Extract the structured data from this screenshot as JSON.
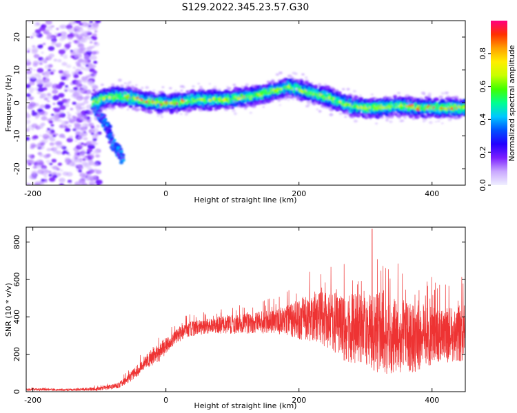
{
  "title": "S129.2022.345.23.57.G30",
  "chart_data": [
    {
      "type": "heatmap",
      "xlabel": "Height of straight line (km)",
      "ylabel": "Frequency (Hz)",
      "xlim": [
        -210,
        450
      ],
      "ylim": [
        -25,
        25
      ],
      "xticks": [
        -200,
        0,
        200,
        400
      ],
      "yticks": [
        -20,
        -10,
        0,
        10,
        20
      ],
      "colorbar": {
        "label": "Normalized spectral amplitude",
        "range": [
          0.0,
          1.0
        ],
        "ticks": [
          0.0,
          0.2,
          0.4,
          0.6,
          0.8
        ],
        "tick_labels": [
          "0.0",
          "0.2",
          "0.4",
          "0.6",
          "0.8"
        ],
        "colormap": [
          "#f0f0ff",
          "#c9a8ff",
          "#7b1fff",
          "#2200ff",
          "#0050ff",
          "#00c8ff",
          "#00ff90",
          "#40ff00",
          "#c8ff00",
          "#ffee00",
          "#ffa000",
          "#ff3000",
          "#ff0080"
        ]
      },
      "ridge": {
        "x": [
          -110,
          -90,
          -70,
          -50,
          -30,
          -10,
          10,
          30,
          50,
          70,
          90,
          110,
          130,
          150,
          170,
          185,
          200,
          220,
          240,
          260,
          280,
          300,
          320,
          340,
          360,
          380,
          400,
          420,
          440
        ],
        "y": [
          0,
          1.5,
          2,
          1.5,
          0.5,
          0,
          0,
          0.5,
          1,
          1,
          1,
          1.5,
          2,
          3,
          4,
          5,
          4,
          3,
          2,
          0.5,
          -1,
          -1.5,
          -1.5,
          -1,
          -1,
          -1.5,
          -1.5,
          -1.5,
          -1.5
        ]
      },
      "descending_branch": {
        "x": [
          -105,
          -95,
          -85,
          -78,
          -70,
          -65
        ],
        "y": [
          -2,
          -5,
          -9,
          -13,
          -15,
          -17
        ]
      },
      "noise_region_xmax": -100
    },
    {
      "type": "line",
      "color": "#ee3333",
      "xlabel": "Height of straight line (km)",
      "ylabel": "SNR (10 * v/v)",
      "xlim": [
        -210,
        450
      ],
      "ylim": [
        0,
        880
      ],
      "xticks": [
        -200,
        0,
        200,
        400
      ],
      "yticks": [
        0,
        200,
        400,
        600,
        800
      ],
      "envelope": {
        "x": [
          -210,
          -150,
          -100,
          -70,
          -50,
          -30,
          -10,
          10,
          30,
          60,
          100,
          150,
          180,
          210,
          240,
          270,
          300,
          320,
          350,
          380,
          410,
          440,
          450
        ],
        "mean": [
          12,
          10,
          15,
          35,
          90,
          160,
          210,
          280,
          330,
          350,
          360,
          370,
          380,
          390,
          390,
          340,
          330,
          320,
          300,
          280,
          300,
          310,
          320
        ],
        "amp": [
          6,
          5,
          10,
          15,
          30,
          40,
          50,
          40,
          40,
          40,
          50,
          60,
          80,
          120,
          150,
          180,
          200,
          230,
          200,
          180,
          150,
          150,
          150
        ]
      },
      "peak": {
        "x": 310,
        "y": 870
      }
    }
  ]
}
